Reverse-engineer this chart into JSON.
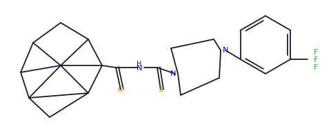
{
  "bg_color": "#ffffff",
  "line_color": "#1a1a2e",
  "atom_colors": {
    "O": "#cc8800",
    "N": "#0000cc",
    "S": "#cc8800",
    "F": "#33aa33",
    "H": "#1a1a2e",
    "C": "#1a1a2e"
  },
  "figsize": [
    4.81,
    1.93
  ],
  "dpi": 100,
  "lw": 1.3
}
